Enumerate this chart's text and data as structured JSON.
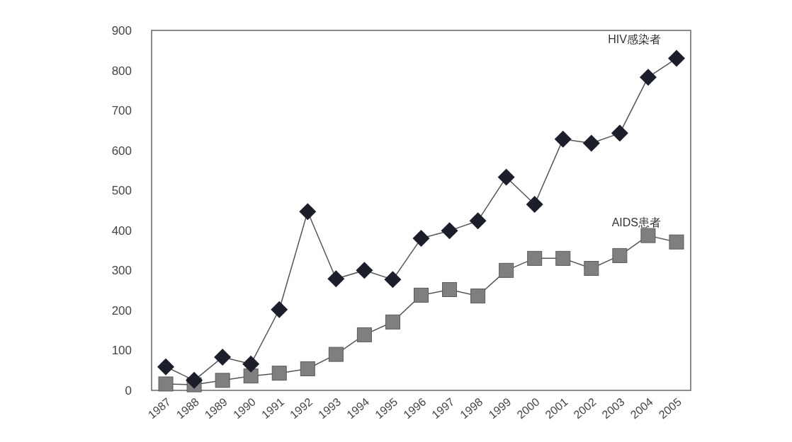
{
  "chart_data": {
    "type": "line",
    "categories": [
      "1987",
      "1988",
      "1989",
      "1990",
      "1991",
      "1992",
      "1993",
      "1994",
      "1995",
      "1996",
      "1997",
      "1998",
      "1999",
      "2000",
      "2001",
      "2002",
      "2003",
      "2004",
      "2005"
    ],
    "series": [
      {
        "name": "HIV感染者",
        "color": "#1c1f2b",
        "marker": "diamond",
        "values": [
          59,
          25,
          83,
          66,
          202,
          447,
          279,
          300,
          277,
          380,
          399,
          424,
          533,
          465,
          628,
          618,
          643,
          783,
          830
        ]
      },
      {
        "name": "AIDS患者",
        "color": "#7f7f7f",
        "marker": "square",
        "values": [
          16,
          14,
          25,
          36,
          43,
          54,
          90,
          139,
          171,
          238,
          252,
          236,
          300,
          330,
          330,
          305,
          337,
          387,
          371
        ]
      }
    ],
    "ylim": [
      0,
      900
    ],
    "yticks": [
      0,
      100,
      200,
      300,
      400,
      500,
      600,
      700,
      800,
      900
    ],
    "grid": false
  }
}
